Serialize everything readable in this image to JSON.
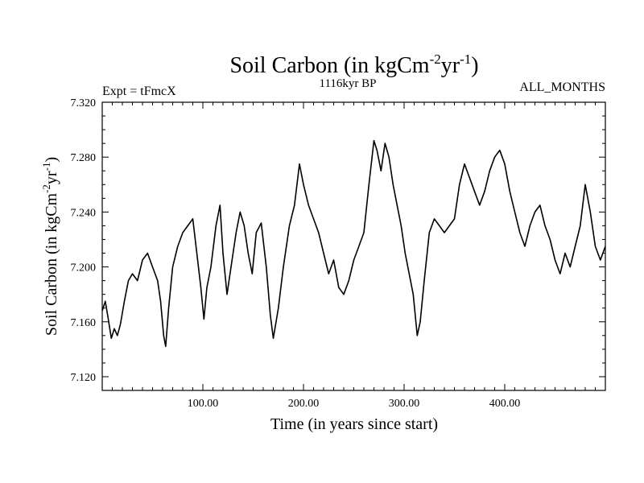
{
  "chart_data": {
    "type": "line",
    "title": "Soil Carbon (in kgCm-2yr-1)",
    "title_parts": {
      "main": "Soil Carbon (in kgCm",
      "sup1": "-2",
      "mid": "yr",
      "sup2": "-1",
      "end": ")"
    },
    "subtitle": "1116kyr BP",
    "left_label": "Expt = tFmcX",
    "right_label": "ALL_MONTHS",
    "xlabel": "Time (in years since start)",
    "ylabel_parts": {
      "main": "Soil Carbon (in kgCm",
      "sup1": "-2",
      "mid": "yr",
      "sup2": "-1",
      "end": ")"
    },
    "xlim": [
      0,
      500
    ],
    "ylim": [
      7.11,
      7.32
    ],
    "x_ticks": [
      100,
      200,
      300,
      400
    ],
    "x_tick_labels": [
      "100.00",
      "200.00",
      "300.00",
      "400.00"
    ],
    "y_ticks": [
      7.12,
      7.16,
      7.2,
      7.24,
      7.28,
      7.32
    ],
    "y_tick_labels": [
      "7.120",
      "7.160",
      "7.200",
      "7.240",
      "7.280",
      "7.320"
    ],
    "series": [
      {
        "name": "Soil Carbon",
        "color": "#000000",
        "x": [
          0,
          3,
          6,
          9,
          12,
          15,
          18,
          22,
          26,
          30,
          35,
          40,
          45,
          50,
          55,
          58,
          61,
          63,
          66,
          70,
          75,
          80,
          85,
          90,
          94,
          98,
          101,
          104,
          108,
          113,
          117,
          120,
          124,
          128,
          133,
          137,
          141,
          145,
          149,
          153,
          158,
          163,
          167,
          170,
          175,
          180,
          186,
          191,
          196,
          200,
          205,
          210,
          215,
          220,
          225,
          230,
          235,
          240,
          245,
          250,
          255,
          260,
          265,
          270,
          273,
          277,
          281,
          285,
          289,
          293,
          297,
          301,
          305,
          309,
          313,
          316,
          320,
          325,
          330,
          335,
          340,
          345,
          350,
          355,
          360,
          365,
          370,
          375,
          380,
          385,
          390,
          395,
          400,
          405,
          410,
          415,
          420,
          425,
          430,
          435,
          440,
          445,
          450,
          455,
          460,
          465,
          470,
          475,
          480,
          485,
          490,
          495,
          500
        ],
        "values": [
          7.168,
          7.175,
          7.162,
          7.148,
          7.155,
          7.15,
          7.158,
          7.175,
          7.19,
          7.195,
          7.19,
          7.205,
          7.21,
          7.2,
          7.19,
          7.175,
          7.15,
          7.142,
          7.17,
          7.2,
          7.215,
          7.225,
          7.23,
          7.235,
          7.21,
          7.185,
          7.162,
          7.185,
          7.2,
          7.23,
          7.245,
          7.21,
          7.18,
          7.2,
          7.225,
          7.24,
          7.23,
          7.21,
          7.195,
          7.225,
          7.232,
          7.2,
          7.165,
          7.148,
          7.17,
          7.2,
          7.23,
          7.245,
          7.275,
          7.26,
          7.245,
          7.235,
          7.225,
          7.21,
          7.195,
          7.205,
          7.185,
          7.18,
          7.19,
          7.205,
          7.215,
          7.225,
          7.26,
          7.292,
          7.285,
          7.27,
          7.29,
          7.28,
          7.26,
          7.245,
          7.23,
          7.21,
          7.195,
          7.18,
          7.15,
          7.16,
          7.19,
          7.225,
          7.235,
          7.23,
          7.225,
          7.23,
          7.235,
          7.26,
          7.275,
          7.265,
          7.255,
          7.245,
          7.255,
          7.27,
          7.28,
          7.285,
          7.275,
          7.255,
          7.24,
          7.225,
          7.215,
          7.23,
          7.24,
          7.245,
          7.23,
          7.22,
          7.205,
          7.195,
          7.21,
          7.2,
          7.215,
          7.23,
          7.26,
          7.24,
          7.215,
          7.205,
          7.215
        ]
      }
    ]
  }
}
